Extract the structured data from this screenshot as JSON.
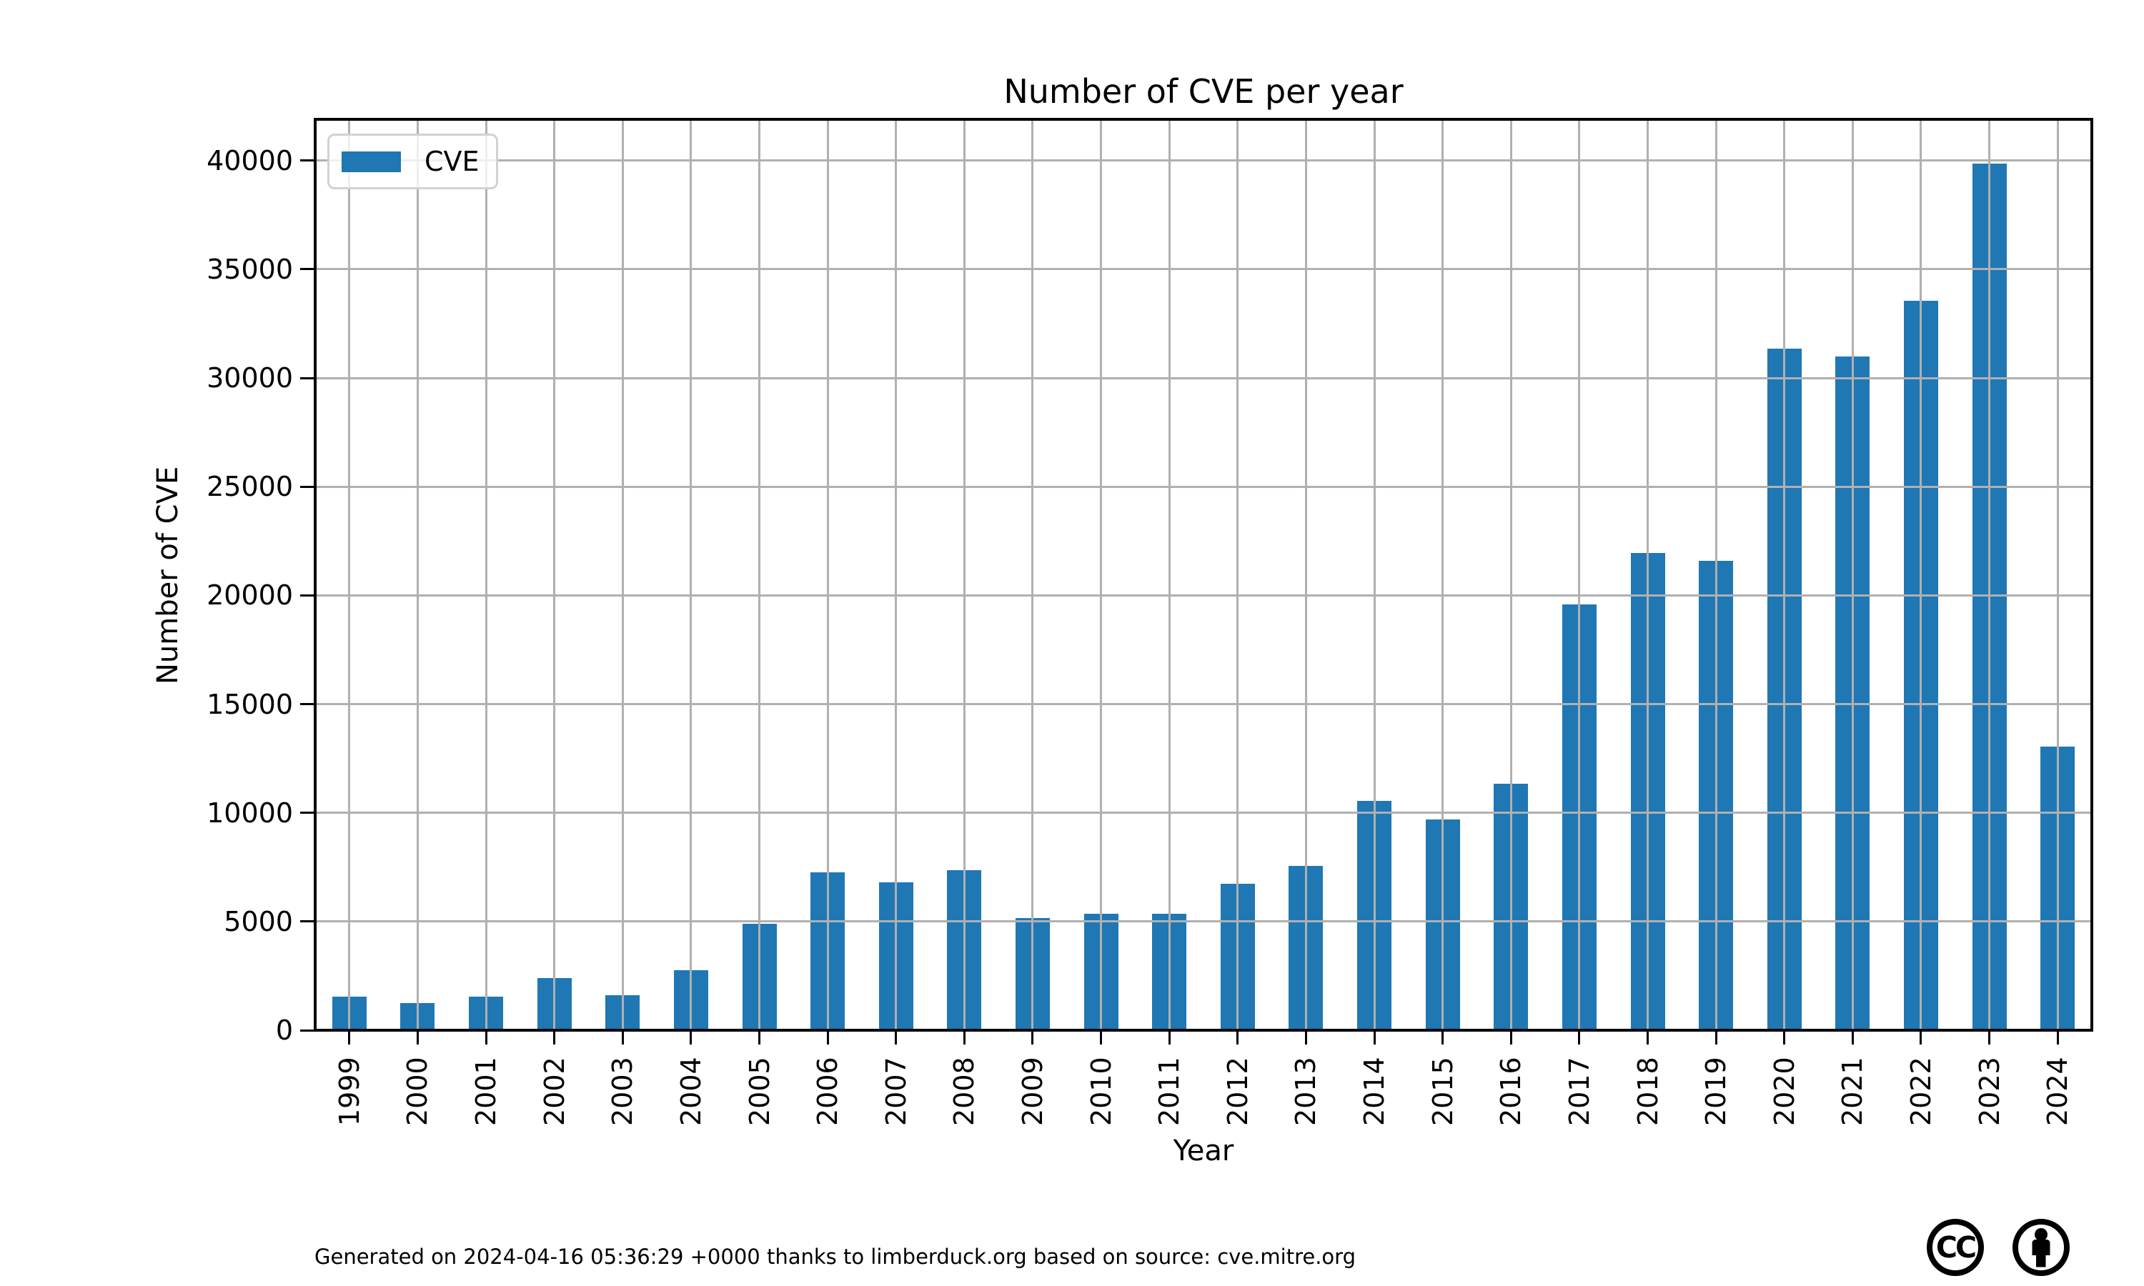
{
  "chart_data": {
    "type": "bar",
    "title": "Number of CVE per year",
    "xlabel": "Year",
    "ylabel": "Number of CVE",
    "categories": [
      "1999",
      "2000",
      "2001",
      "2002",
      "2003",
      "2004",
      "2005",
      "2006",
      "2007",
      "2008",
      "2009",
      "2010",
      "2011",
      "2012",
      "2013",
      "2014",
      "2015",
      "2016",
      "2017",
      "2018",
      "2019",
      "2020",
      "2021",
      "2022",
      "2023",
      "2024"
    ],
    "series": [
      {
        "name": "CVE",
        "values": [
          1550,
          1250,
          1550,
          2400,
          1600,
          2750,
          4900,
          7250,
          6800,
          7350,
          5150,
          5350,
          5350,
          6750,
          7550,
          10550,
          9700,
          11350,
          19600,
          21950,
          21600,
          31350,
          31000,
          33550,
          39860,
          13050
        ]
      }
    ],
    "ylim": [
      0,
      41900
    ],
    "yticks": [
      0,
      5000,
      10000,
      15000,
      20000,
      25000,
      30000,
      35000,
      40000
    ],
    "grid": true,
    "grid_color": "#b0b0b0",
    "bar_color": "#1f77b4",
    "legend_position": "upper left"
  },
  "legend": {
    "label": "CVE",
    "swatch_color": "#1f77b4"
  },
  "footer": {
    "text": "Generated on 2024-04-16 05:36:29 +0000 thanks to limberduck.org based on source: cve.mitre.org"
  },
  "icons": {
    "cc_text": "CC",
    "cc_name": "creative-commons-icon",
    "attribution_name": "attribution-person-icon"
  },
  "colors": {
    "bar": "#1f77b4",
    "grid": "#b0b0b0",
    "text": "#000000",
    "background": "#ffffff"
  }
}
